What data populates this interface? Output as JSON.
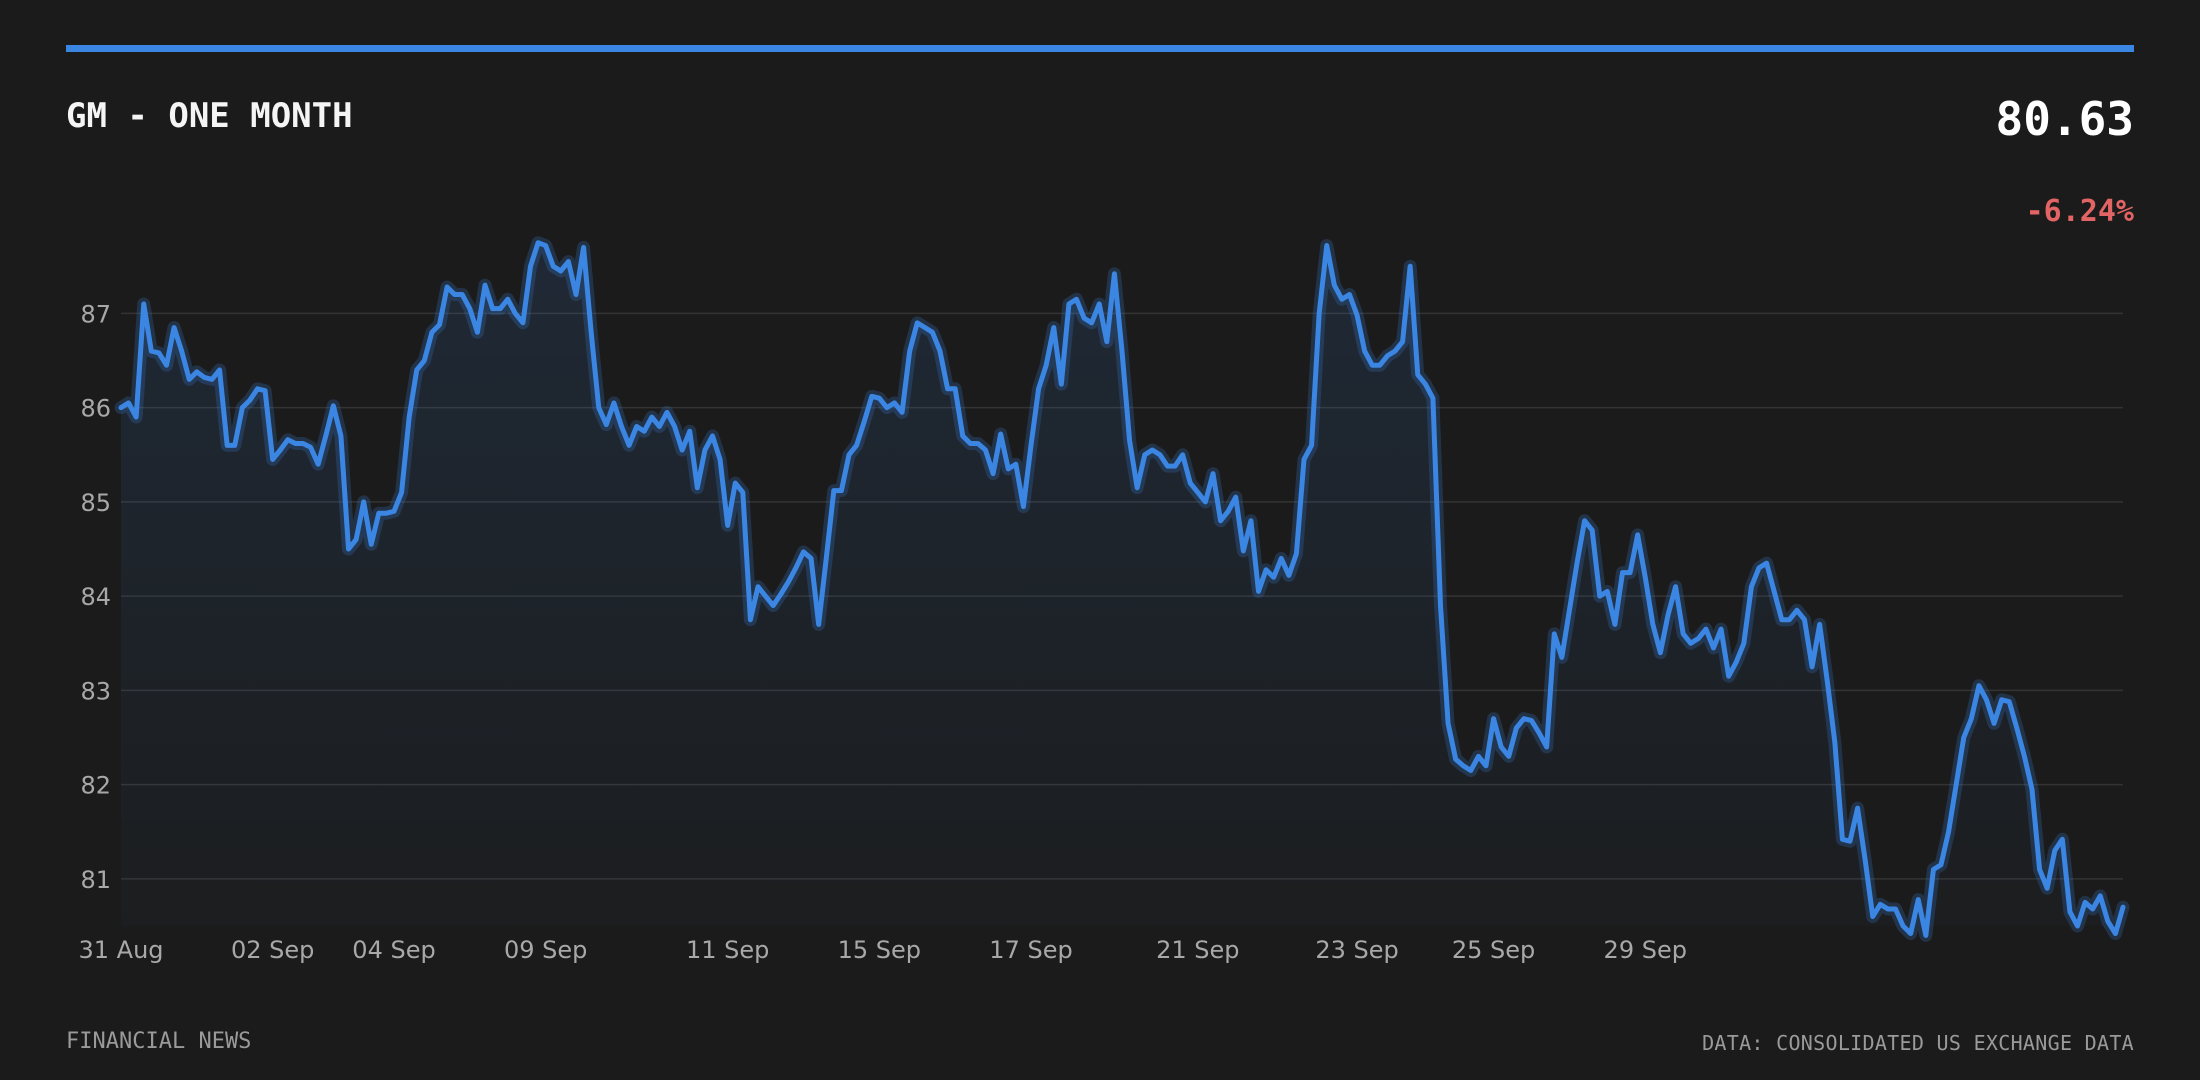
{
  "header": {
    "title": "GM - ONE MONTH",
    "price": "80.63",
    "change": "-6.24%"
  },
  "footer": {
    "source_left": "FINANCIAL NEWS",
    "source_right": "DATA: CONSOLIDATED US EXCHANGE DATA"
  },
  "colors": {
    "background": "#1b1b1b",
    "accent": "#3b86e3",
    "negative": "#e36464",
    "grid": "#333333",
    "tick_text": "#a8a8a8"
  },
  "chart_data": {
    "type": "area",
    "title": "GM - ONE MONTH",
    "xlabel": "",
    "ylabel": "",
    "grid": true,
    "ylim": [
      80.5,
      87.8
    ],
    "yticks": [
      81,
      82,
      83,
      84,
      85,
      86,
      87
    ],
    "x_tick_labels": [
      "31 Aug",
      "02 Sep",
      "04 Sep",
      "09 Sep",
      "11 Sep",
      "15 Sep",
      "17 Sep",
      "21 Sep",
      "23 Sep",
      "25 Sep",
      "29 Sep"
    ],
    "x_tick_index": [
      0,
      20,
      36,
      56,
      80,
      100,
      120,
      142,
      163,
      181,
      201
    ],
    "series": [
      {
        "values": [
          86.0,
          86.05,
          85.9,
          87.1,
          86.6,
          86.58,
          86.45,
          86.85,
          86.6,
          86.3,
          86.38,
          86.32,
          86.3,
          86.4,
          85.6,
          85.6,
          86.0,
          86.08,
          86.2,
          86.18,
          85.45,
          85.55,
          85.66,
          85.62,
          85.62,
          85.58,
          85.4,
          85.7,
          86.02,
          85.7,
          84.5,
          84.6,
          85.0,
          84.55,
          84.88,
          84.88,
          84.9,
          85.1,
          85.9,
          86.4,
          86.5,
          86.8,
          86.88,
          87.28,
          87.2,
          87.2,
          87.05,
          86.8,
          87.3,
          87.05,
          87.05,
          87.15,
          87.0,
          86.9,
          87.5,
          87.75,
          87.72,
          87.5,
          87.45,
          87.55,
          87.2,
          87.7,
          86.8,
          86.0,
          85.82,
          86.05,
          85.8,
          85.6,
          85.8,
          85.75,
          85.9,
          85.8,
          85.95,
          85.8,
          85.55,
          85.75,
          85.15,
          85.55,
          85.7,
          85.45,
          84.75,
          85.2,
          85.1,
          83.75,
          84.1,
          84.0,
          83.9,
          84.02,
          84.15,
          84.3,
          84.47,
          84.4,
          83.7,
          84.4,
          85.12,
          85.12,
          85.5,
          85.6,
          85.85,
          86.12,
          86.1,
          86.0,
          86.05,
          85.95,
          86.6,
          86.9,
          86.85,
          86.8,
          86.6,
          86.2,
          86.2,
          85.7,
          85.62,
          85.62,
          85.55,
          85.3,
          85.72,
          85.35,
          85.4,
          84.95,
          85.6,
          86.2,
          86.45,
          86.85,
          86.25,
          87.1,
          87.15,
          86.95,
          86.9,
          87.1,
          86.7,
          87.42,
          86.6,
          85.65,
          85.15,
          85.5,
          85.55,
          85.5,
          85.38,
          85.38,
          85.5,
          85.2,
          85.1,
          85.0,
          85.3,
          84.8,
          84.9,
          85.05,
          84.48,
          84.8,
          84.05,
          84.28,
          84.2,
          84.4,
          84.22,
          84.45,
          85.45,
          85.6,
          87.0,
          87.72,
          87.3,
          87.15,
          87.2,
          86.98,
          86.6,
          86.45,
          86.45,
          86.55,
          86.6,
          86.7,
          87.5,
          86.35,
          86.25,
          86.1,
          83.9,
          82.65,
          82.27,
          82.2,
          82.15,
          82.3,
          82.2,
          82.7,
          82.4,
          82.3,
          82.6,
          82.7,
          82.68,
          82.55,
          82.4,
          83.6,
          83.35,
          83.85,
          84.35,
          84.8,
          84.7,
          84.0,
          84.05,
          83.7,
          84.25,
          84.25,
          84.65,
          84.2,
          83.7,
          83.4,
          83.8,
          84.1,
          83.6,
          83.5,
          83.55,
          83.65,
          83.45,
          83.65,
          83.15,
          83.3,
          83.5,
          84.1,
          84.3,
          84.35,
          84.05,
          83.75,
          83.75,
          83.85,
          83.75,
          83.25,
          83.7,
          83.1,
          82.45,
          81.42,
          81.4,
          81.75,
          81.2,
          80.6,
          80.73,
          80.68,
          80.68,
          80.5,
          80.42,
          80.78,
          80.4,
          81.1,
          81.15,
          81.5,
          82.0,
          82.5,
          82.7,
          83.05,
          82.9,
          82.65,
          82.9,
          82.88,
          82.6,
          82.3,
          81.95,
          81.1,
          80.9,
          81.3,
          81.42,
          80.65,
          80.5,
          80.75,
          80.68,
          80.82,
          80.55,
          80.42,
          80.7
        ]
      }
    ]
  }
}
